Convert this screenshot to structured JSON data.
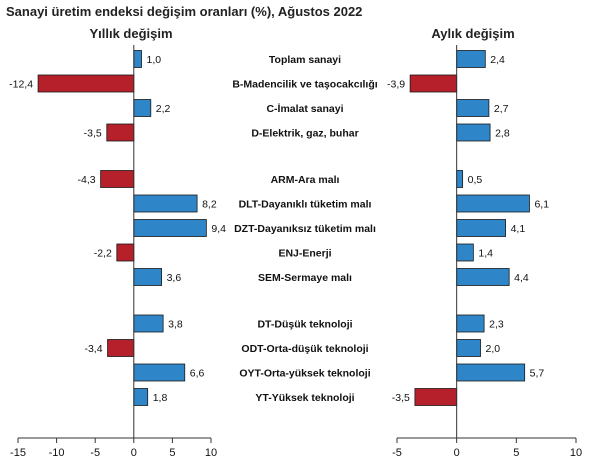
{
  "chart_data": {
    "type": "bar",
    "orientation": "horizontal",
    "title": "Sanayi üretim endeksi değişim oranları (%), Ağustos 2022",
    "categories": [
      "Toplam sanayi",
      "B-Madencilik ve taşocakcılığı",
      "C-İmalat sanayi",
      "D-Elektrik, gaz, buhar",
      "ARM-Ara malı",
      "DLT-Dayanıklı tüketim malı",
      "DZT-Dayanıksız tüketim malı",
      "ENJ-Enerji",
      "SEM-Sermaye malı",
      "DT-Düşük teknoloji",
      "ODT-Orta-düşük teknoloji",
      "OYT-Orta-yüksek teknoloji",
      "YT-Yüksek teknoloji"
    ],
    "groups": [
      [
        0,
        3
      ],
      [
        4,
        8
      ],
      [
        9,
        12
      ]
    ],
    "panels": [
      {
        "title": "Yıllık değişim",
        "values": [
          1.0,
          -12.4,
          2.2,
          -3.5,
          -4.3,
          8.2,
          9.4,
          -2.2,
          3.6,
          3.8,
          -3.4,
          6.6,
          1.8
        ],
        "value_labels": [
          "1,0",
          "-12,4",
          "2,2",
          "-3,5",
          "-4,3",
          "8,2",
          "9,4",
          "-2,2",
          "3,6",
          "3,8",
          "-3,4",
          "6,6",
          "1,8"
        ],
        "xlim": [
          -15,
          10
        ],
        "ticks": [
          -15,
          -10,
          -5,
          0,
          5,
          10
        ],
        "tick_labels": [
          "-15",
          "-10",
          "-5",
          "0",
          "5",
          "10"
        ]
      },
      {
        "title": "Aylık değişim",
        "values": [
          2.4,
          -3.9,
          2.7,
          2.8,
          0.5,
          6.1,
          4.1,
          1.4,
          4.4,
          2.3,
          2.0,
          5.7,
          -3.5
        ],
        "value_labels": [
          "2,4",
          "-3,9",
          "2,7",
          "2,8",
          "0,5",
          "6,1",
          "4,1",
          "1,4",
          "4,4",
          "2,3",
          "2,0",
          "5,7",
          "-3,5"
        ],
        "xlim": [
          -5,
          10
        ],
        "ticks": [
          -5,
          0,
          5,
          10
        ],
        "tick_labels": [
          "-5",
          "0",
          "5",
          "10"
        ]
      }
    ],
    "colors": {
      "positive": "#2E86C8",
      "negative": "#B5202A",
      "axis": "#333333"
    },
    "grid": false,
    "legend": "none"
  }
}
